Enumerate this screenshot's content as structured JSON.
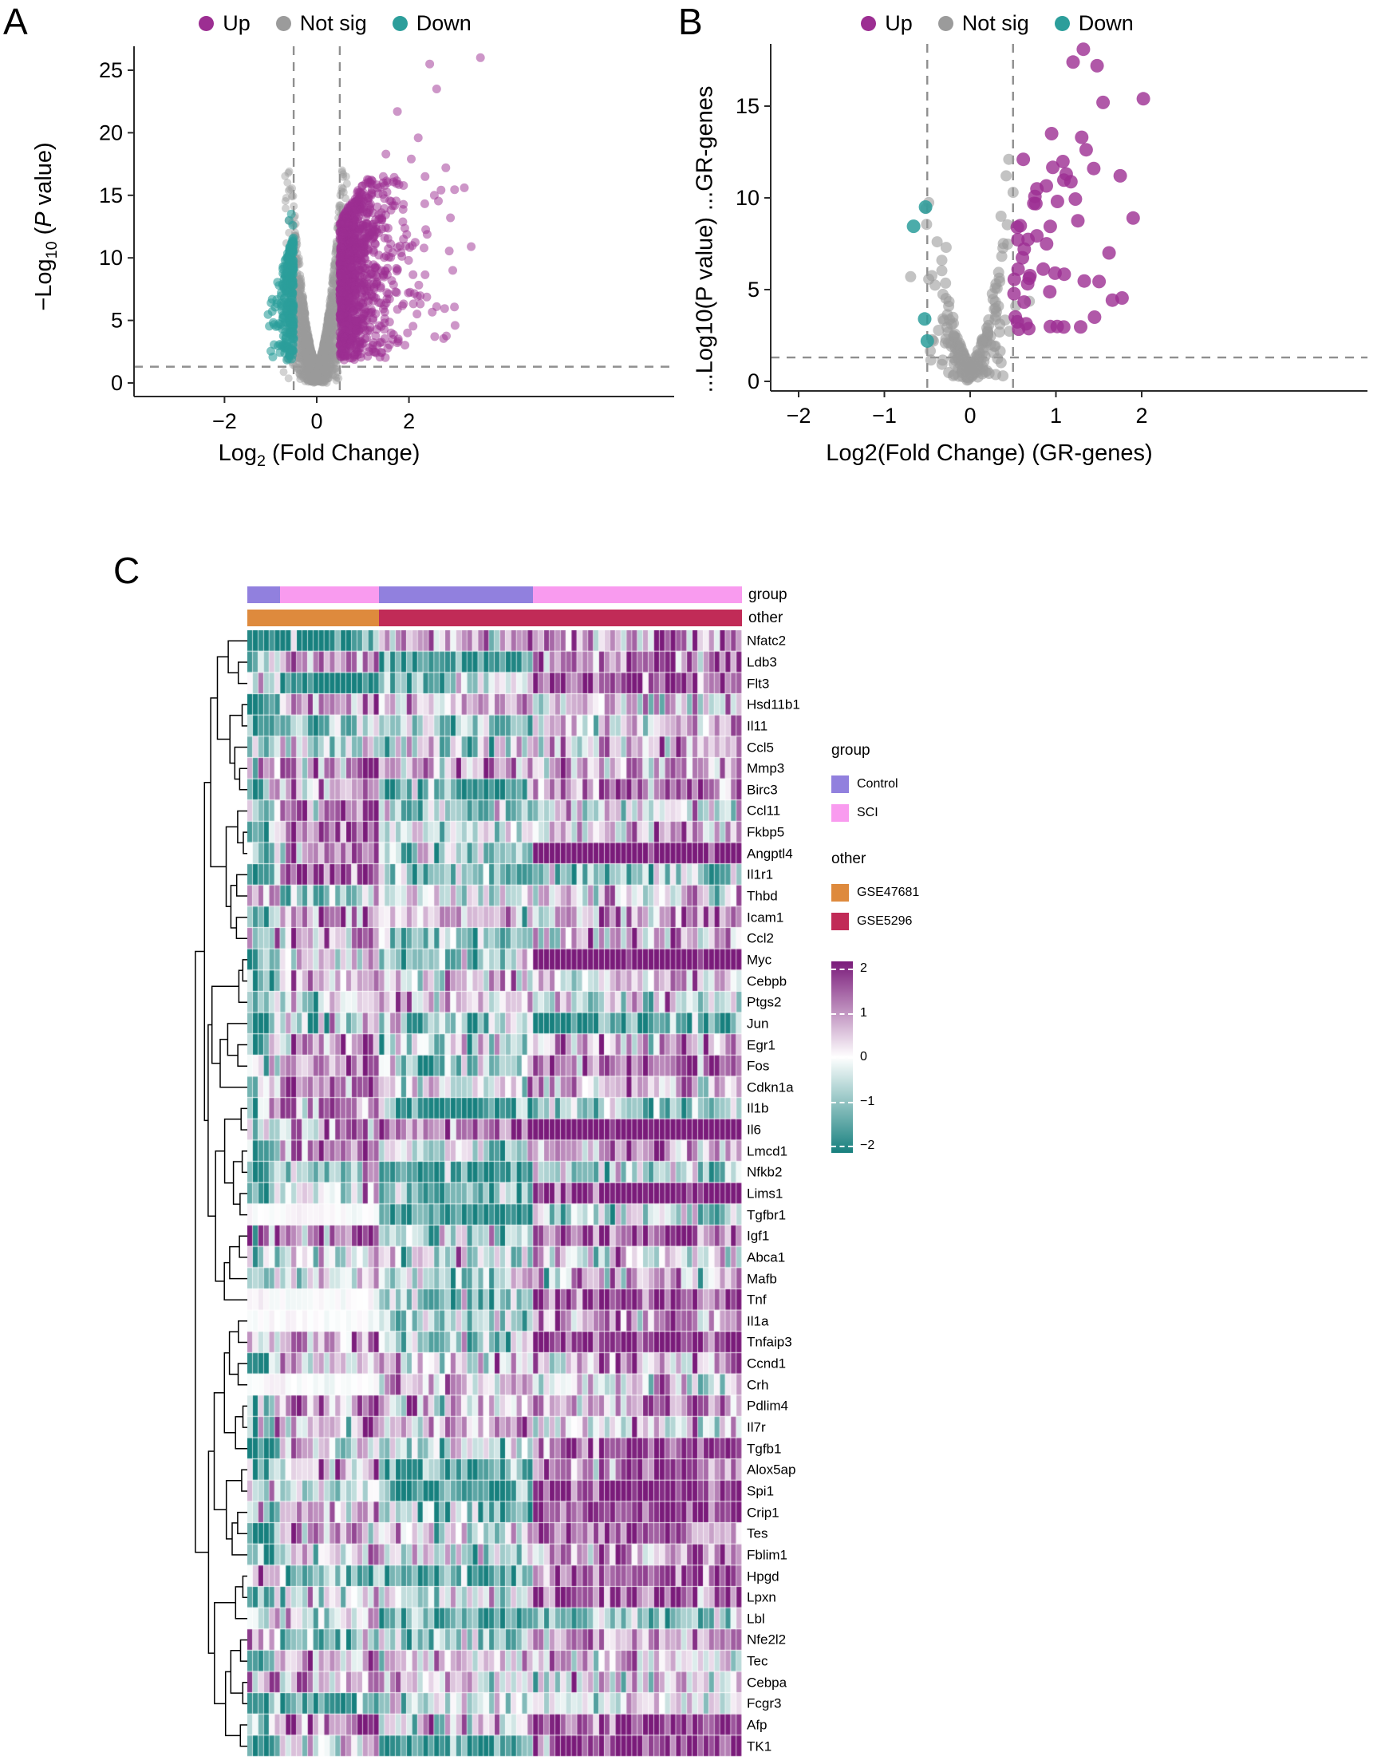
{
  "panels": {
    "A": {
      "letter": "A"
    },
    "B": {
      "letter": "B"
    },
    "C": {
      "letter": "C"
    }
  },
  "volcanoA": {
    "legend": [
      {
        "label": "Up"
      },
      {
        "label": "Not sig"
      },
      {
        "label": "Down"
      }
    ],
    "xlabel": {
      "pre": "Log",
      "sub": "2",
      "post": " (Fold Change)"
    },
    "ylabel": {
      "pre": "−Log",
      "sub": "10",
      "mid": " (",
      "p": "P",
      "post": " value)"
    }
  },
  "volcanoB": {
    "legend": [
      {
        "label": "Up"
      },
      {
        "label": "Not sig"
      },
      {
        "label": "Down"
      }
    ],
    "xlabel": "Log2(Fold Change) (GR-genes)",
    "ylabel": "...Log10(P value) ...GR-genes"
  },
  "heatmap": {
    "annotations": {
      "group": {
        "label": "group",
        "segments": [
          {
            "name": "Control",
            "from": 0,
            "to": 6
          },
          {
            "name": "SCI",
            "from": 6,
            "to": 24
          },
          {
            "name": "Control",
            "from": 24,
            "to": 52
          },
          {
            "name": "SCI",
            "from": 52,
            "to": 90
          }
        ]
      },
      "other": {
        "label": "other",
        "segments": [
          {
            "name": "GSE47681",
            "from": 0,
            "to": 24
          },
          {
            "name": "GSE5296",
            "from": 24,
            "to": 90
          }
        ]
      }
    },
    "legends": {
      "group": {
        "title": "group",
        "items": [
          {
            "label": "Control",
            "color": "#9180DE"
          },
          {
            "label": "SCI",
            "color": "#F99BEF"
          }
        ]
      },
      "other": {
        "title": "other",
        "items": [
          {
            "label": "GSE47681",
            "color": "#DE8A3D"
          },
          {
            "label": "GSE5296",
            "color": "#C12B57"
          }
        ]
      },
      "scale": {
        "ticks": [
          2,
          1,
          0,
          -1,
          -2
        ]
      }
    }
  },
  "chart_data": [
    {
      "id": "volcano_a",
      "type": "scatter",
      "title": "",
      "xlabel": "Log2 (Fold Change)",
      "ylabel": "-Log10 (P value)",
      "xlim": [
        -4,
        7.8
      ],
      "ylim": [
        -1.1,
        27.9
      ],
      "xticks": [
        -2,
        0,
        2
      ],
      "yticks": [
        0,
        5,
        10,
        15,
        20,
        25
      ],
      "thresholds": {
        "vlines": [
          -0.5,
          0.5
        ],
        "hline": 1.3
      },
      "legend_position": "top",
      "grid": false,
      "seed": 42,
      "series": [
        {
          "name": "Up",
          "color": "#9C2E92",
          "n": 1050,
          "gen": "wing",
          "dir": 1,
          "r": 5.5,
          "alpha": 0.5,
          "x_start": 0.5,
          "x_rate": 0.42,
          "x_max": 3.3,
          "y_min": 1.8,
          "y_amp": 16.5,
          "env_base": 0.78,
          "env_slope": 0.4,
          "extra": [
            [
              3.55,
              26.0
            ],
            [
              2.45,
              25.5
            ],
            [
              2.6,
              23.5
            ],
            [
              1.75,
              21.7
            ],
            [
              2.2,
              19.6
            ],
            [
              1.5,
              18.3
            ],
            [
              2.05,
              17.9
            ],
            [
              2.35,
              16.5
            ],
            [
              2.8,
              17.2
            ],
            [
              3.2,
              15.6
            ],
            [
              2.55,
              15.0
            ],
            [
              2.9,
              13.2
            ],
            [
              3.35,
              10.9
            ],
            [
              2.95,
              9.0
            ],
            [
              2.6,
              6.1
            ],
            [
              3.0,
              4.6
            ]
          ]
        },
        {
          "name": "Not sig",
          "color": "#9B9B9B",
          "n": 2000,
          "gen": "vshape",
          "r": 5,
          "alpha": 0.45,
          "x_sd": 0.27,
          "x_max": 0.72,
          "y_base": 1.6,
          "y_amp": 15.5,
          "y_pow": 1.7,
          "x_half": 0.55,
          "extra": []
        },
        {
          "name": "Down",
          "color": "#2C9E9B",
          "n": 270,
          "gen": "wing",
          "dir": -1,
          "r": 5.5,
          "alpha": 0.6,
          "x_start": 0.5,
          "x_rate": 0.115,
          "x_max": 1.08,
          "y_min": 1.8,
          "y_amp": 11.8,
          "env_base": 1,
          "env_slope": 0.9,
          "extra": [
            [
              -0.55,
              13.5
            ],
            [
              -0.6,
              13.0
            ],
            [
              -0.52,
              12.6
            ]
          ]
        }
      ]
    },
    {
      "id": "volcano_b",
      "type": "scatter",
      "title": "",
      "xlabel": "Log2(Fold Change) (GR-genes)",
      "ylabel": "...Log10(P value) ...GR-genes",
      "xlim": [
        -2.3,
        4.6
      ],
      "ylim": [
        -0.5,
        18.5
      ],
      "xticks": [
        -2,
        -1,
        0,
        1,
        2
      ],
      "yticks": [
        0,
        5,
        10,
        15
      ],
      "thresholds": {
        "vlines": [
          -0.5,
          0.5
        ],
        "hline": 1.3
      },
      "legend_position": "top",
      "grid": false,
      "seed": 99,
      "series": [
        {
          "name": "Up",
          "color": "#9C2E92",
          "n": 46,
          "gen": "wing",
          "dir": 1,
          "r": 8.5,
          "alpha": 0.8,
          "x_start": 0.5,
          "x_rate": 0.5,
          "x_max": 2.02,
          "y_min": 2.6,
          "y_amp": 16,
          "env_base": 0.55,
          "env_slope": 0.5,
          "extra": [
            [
              1.32,
              18.1
            ],
            [
              1.2,
              17.4
            ],
            [
              1.48,
              17.2
            ],
            [
              2.02,
              15.4
            ],
            [
              1.55,
              15.2
            ],
            [
              0.95,
              13.5
            ],
            [
              1.3,
              13.3
            ],
            [
              0.62,
              12.1
            ],
            [
              1.12,
              11.3
            ],
            [
              1.75,
              11.2
            ],
            [
              1.9,
              8.9
            ],
            [
              1.62,
              7.0
            ],
            [
              1.45,
              3.5
            ],
            [
              0.55,
              8.4
            ]
          ]
        },
        {
          "name": "Not sig",
          "color": "#9B9B9B",
          "n": 235,
          "gen": "vshape",
          "r": 7,
          "alpha": 0.6,
          "x_sd": 0.22,
          "x_max": 0.78,
          "y_base": 0.9,
          "y_amp": 10.5,
          "y_pow": 1.5,
          "x_half": 0.5,
          "extra": [
            [
              0.45,
              12.1
            ],
            [
              0.42,
              11.2
            ],
            [
              0.36,
              9.0
            ],
            [
              0.5,
              10.3
            ],
            [
              -0.28,
              7.3
            ],
            [
              -0.33,
              6.6
            ]
          ]
        },
        {
          "name": "Down",
          "color": "#2C9E9B",
          "n": 0,
          "gen": "wing",
          "dir": -1,
          "r": 8.5,
          "alpha": 0.85,
          "x_start": 0.5,
          "x_rate": 0.1,
          "x_max": 0.7,
          "y_min": 1.8,
          "y_amp": 9,
          "env_base": 1,
          "env_slope": 0.9,
          "extra": [
            [
              -0.52,
              9.5
            ],
            [
              -0.66,
              8.45
            ],
            [
              -0.53,
              3.4
            ],
            [
              -0.5,
              2.2
            ]
          ]
        }
      ]
    },
    {
      "id": "heatmap_c",
      "type": "heatmap",
      "rows": [
        "Nfatc2",
        "Ldb3",
        "Flt3",
        "Hsd11b1",
        "Il11",
        "Ccl5",
        "Mmp3",
        "Birc3",
        "Ccl11",
        "Fkbp5",
        "Angptl4",
        "Il1r1",
        "Thbd",
        "Icam1",
        "Ccl2",
        "Myc",
        "Cebpb",
        "Ptgs2",
        "Jun",
        "Egr1",
        "Fos",
        "Cdkn1a",
        "Il1b",
        "Il6",
        "Lmcd1",
        "Nfkb2",
        "Lims1",
        "Tgfbr1",
        "Igf1",
        "Abca1",
        "Mafb",
        "Tnf",
        "Il1a",
        "Tnfaip3",
        "Ccnd1",
        "Crh",
        "Pdlim4",
        "Il7r",
        "Tgfb1",
        "Alox5ap",
        "Spi1",
        "Crip1",
        "Tes",
        "Fblim1",
        "Hpgd",
        "Lpxn",
        "Lbl",
        "Nfe2l2",
        "Tec",
        "Cebpa",
        "Fcgr3",
        "Afp",
        "TK1"
      ],
      "n_cols": 90,
      "col_blocks": [
        {
          "name": "GSE47681-Control",
          "from": 0,
          "to": 6
        },
        {
          "name": "GSE47681-SCI",
          "from": 6,
          "to": 24
        },
        {
          "name": "GSE5296-Control",
          "from": 24,
          "to": 52
        },
        {
          "name": "GSE5296-SCI",
          "from": 52,
          "to": 90
        }
      ],
      "block_mean_params": [
        [
          -0.55,
          0.7
        ],
        [
          0.3,
          0.85
        ],
        [
          -0.35,
          0.6
        ],
        [
          0.6,
          0.9
        ]
      ],
      "cell_noise_sd": 0.7,
      "col_offset_sd": 0.3,
      "row_bias_sd": 0.3,
      "special_rows": {
        "Nfatc2": [
          -2.2,
          -2.2,
          0.45,
          0.5
        ]
      },
      "na_left_rows": [
        "Tgfbr1",
        "Tnf",
        "Il1a",
        "Crh"
      ],
      "scale": {
        "min": -2,
        "max": 2,
        "low": "#17807E",
        "mid": "#FFFFFF",
        "high": "#7A1B7A"
      },
      "seed": 7
    }
  ]
}
